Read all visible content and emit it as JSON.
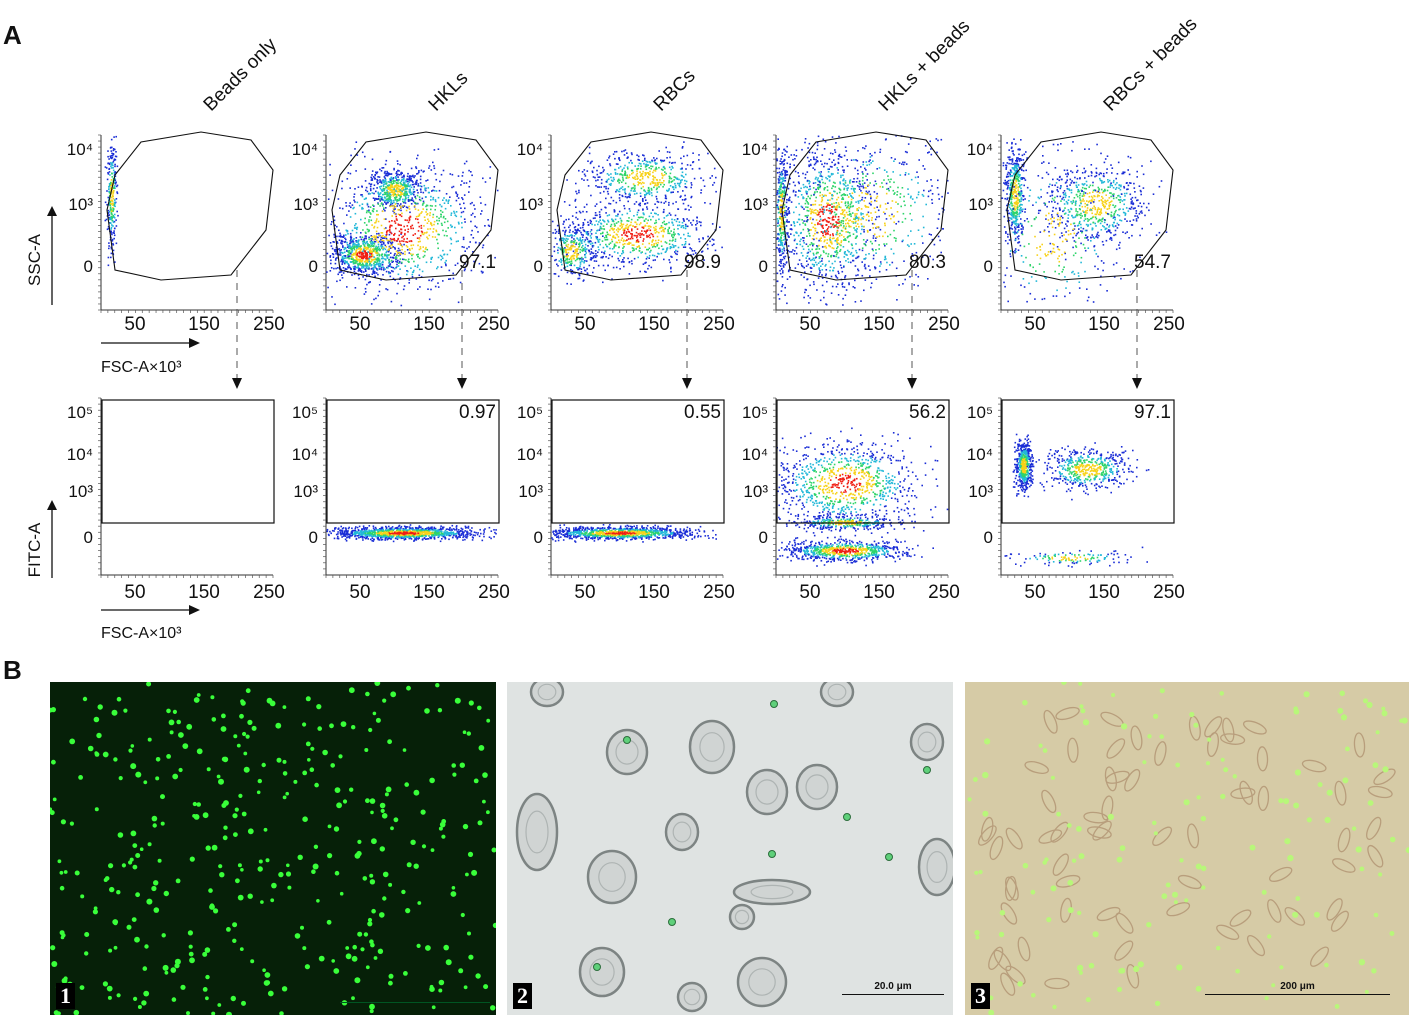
{
  "panel_a_label": "A",
  "panel_b_label": "B",
  "panel_a": {
    "columns": [
      "Beads only",
      "HKLs",
      "RBCs",
      "HKLs + beads",
      "RBCs + beads"
    ],
    "top_row": {
      "y_axis_label": "SSC-A",
      "y_tick_labels": [
        "10⁴",
        "10³",
        "0"
      ],
      "x_axis_label": "FSC-A×10³",
      "x_tick_labels": [
        "50",
        "150",
        "250"
      ],
      "gate_percentages": [
        "",
        "97.1",
        "98.9",
        "80.3",
        "54.7"
      ]
    },
    "bottom_row": {
      "y_axis_label": "FITC-A",
      "y_tick_labels": [
        "10⁵",
        "10⁴",
        "10³",
        "0"
      ],
      "x_axis_label": "FSC-A×10³",
      "x_tick_labels": [
        "50",
        "150",
        "250"
      ],
      "gate_percentages": [
        "",
        "0.97",
        "0.55",
        "56.2",
        "97.1"
      ]
    }
  },
  "panel_b": {
    "images": [
      {
        "number": "1",
        "description_icon": "fluorescent-beads-micrograph",
        "scale_label": ""
      },
      {
        "number": "2",
        "description_icon": "brightfield-cells-micrograph",
        "scale_label": "20.0 μm"
      },
      {
        "number": "3",
        "description_icon": "merged-rbcs-micrograph",
        "scale_label": "200 μm"
      }
    ]
  },
  "colors": {
    "density_low": "#1a2dd6",
    "density_mid": "#2ed46a",
    "density_high": "#f01e14",
    "micro1_bg": "#062008",
    "micro1_bead": "#39ff3a",
    "micro2_bg": "#dfe3e2",
    "micro3_bg": "#d6cba6"
  }
}
